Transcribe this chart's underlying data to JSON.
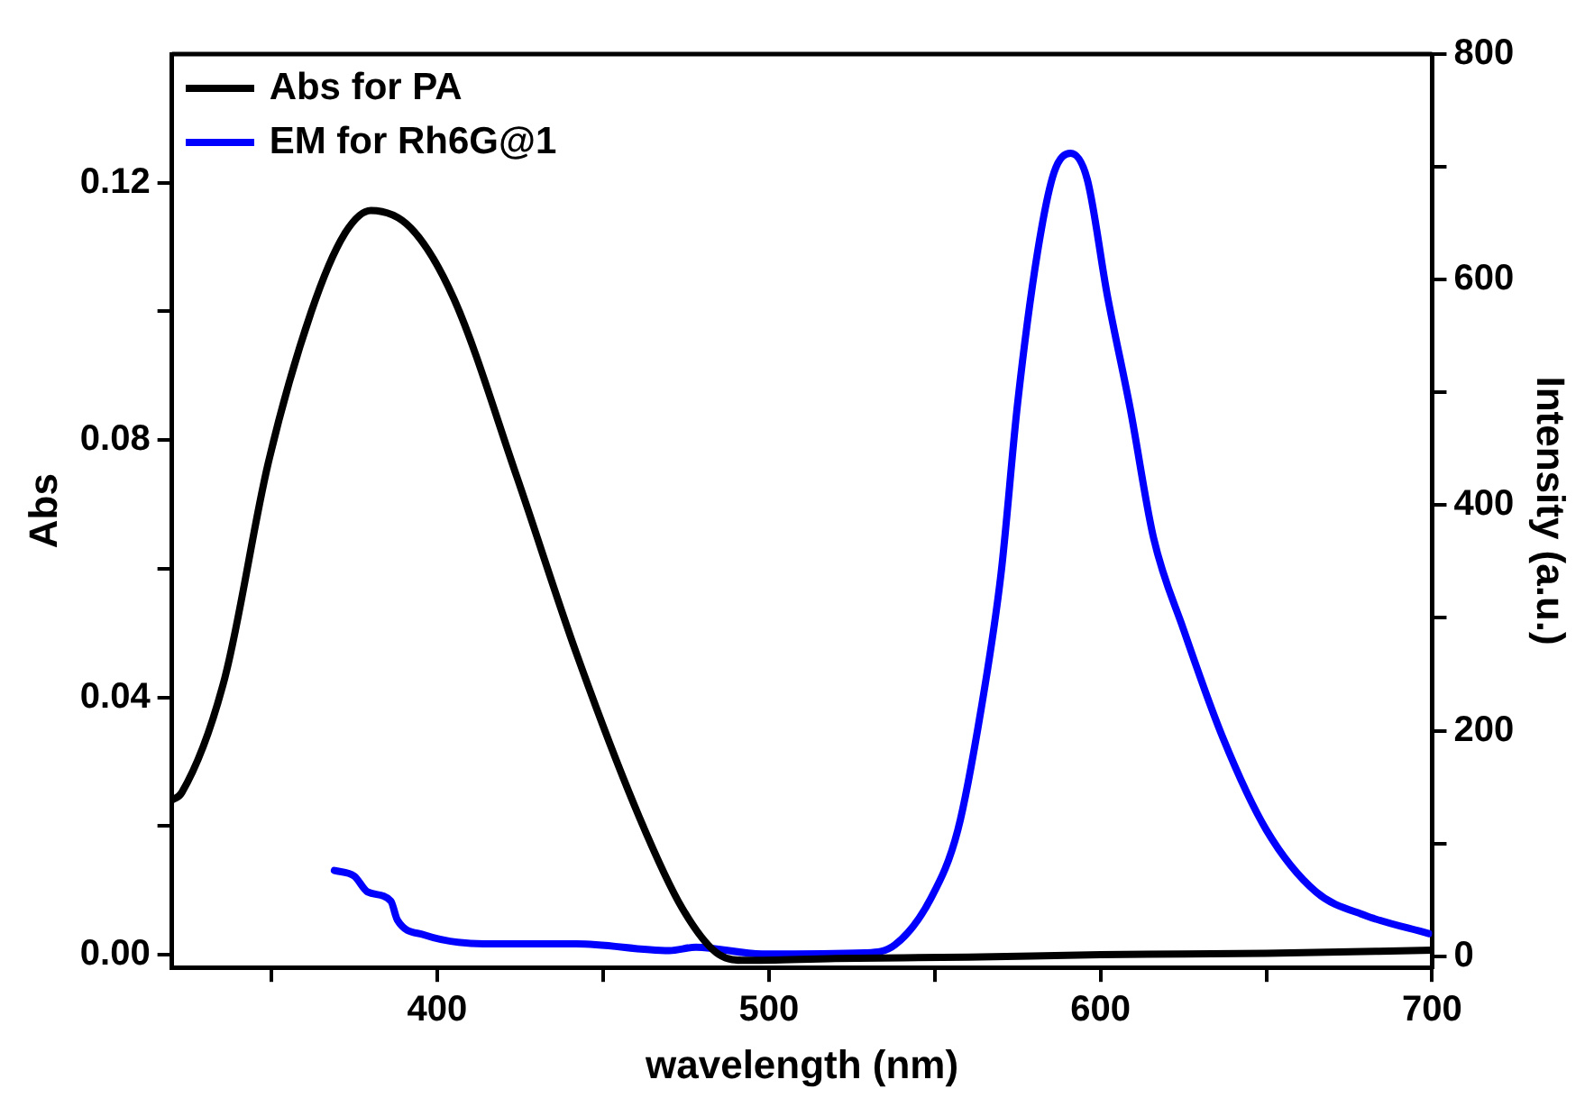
{
  "chart_data": {
    "type": "line",
    "xlabel": "wavelength (nm)",
    "ylabel": "Abs",
    "y2label": "Intensity (a.u.)",
    "xlim": [
      320,
      700
    ],
    "xticks": [
      {
        "value": 350,
        "label": null
      },
      400,
      {
        "value": 450,
        "label": null
      },
      500,
      {
        "value": 550,
        "label": null
      },
      600,
      {
        "value": 650,
        "label": null
      },
      700
    ],
    "ylim": [
      -0.002,
      0.14
    ],
    "yticks": [
      {
        "value": 0,
        "label": "0.00"
      },
      {
        "value": 0.02,
        "label": null
      },
      {
        "value": 0.04,
        "label": "0.04"
      },
      {
        "value": 0.06,
        "label": null
      },
      {
        "value": 0.08,
        "label": "0.08"
      },
      {
        "value": 0.1,
        "label": null
      },
      {
        "value": 0.12,
        "label": "0.12"
      }
    ],
    "y2lim": [
      -10,
      800
    ],
    "y2ticks": [
      0,
      {
        "value": 100,
        "label": null
      },
      200,
      {
        "value": 300,
        "label": null
      },
      400,
      {
        "value": 500,
        "label": null
      },
      600,
      {
        "value": 700,
        "label": null
      },
      800
    ],
    "grid": false,
    "legend": "top left",
    "marker": "none",
    "line_style": "solid",
    "series": [
      {
        "name": "Abs for PA",
        "color": "#000000",
        "x": [
          320,
          323,
          336,
          349,
          362,
          372,
          380,
          392,
          405,
          424,
          442,
          461,
          474,
          485,
          493,
          520,
          560,
          600,
          650,
          700
        ],
        "values": [
          0.024,
          0.0252,
          0.0431,
          0.0763,
          0.0999,
          0.112,
          0.1157,
          0.113,
          0.102,
          0.0743,
          0.0468,
          0.0213,
          0.0071,
          0,
          -0.0009,
          -0.0006,
          -0.0004,
          0,
          0.0002,
          0.0007
        ]
      },
      {
        "name": "EM for Rh6G@1",
        "color": "#0000ff",
        "axis": "y2",
        "x": [
          369,
          375,
          379,
          386,
          388,
          396,
          414,
          442,
          470,
          478,
          498,
          529,
          538,
          549,
          557,
          564,
          570,
          575,
          581,
          586,
          591,
          596,
          602,
          609,
          616,
          625,
          637,
          650,
          665,
          680,
          699
        ],
        "values": [
          76,
          71,
          57,
          49,
          32,
          19,
          11,
          11,
          5,
          8,
          2,
          3,
          10,
          52,
          112,
          219,
          339,
          490,
          624,
          695,
          712,
          689,
          587,
          485,
          371,
          290,
          193,
          112,
          57,
          36,
          20
        ]
      }
    ]
  }
}
